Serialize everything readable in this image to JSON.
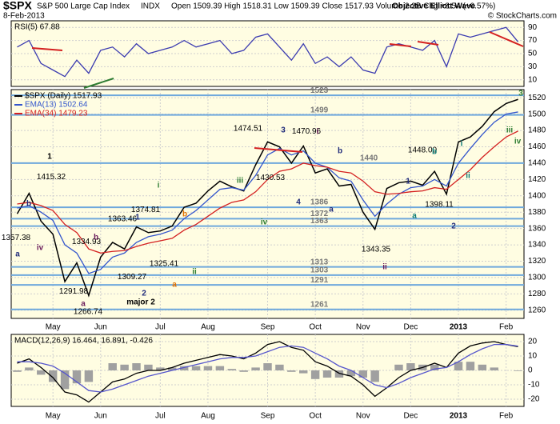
{
  "header": {
    "symbol": "$SPX",
    "name": "S&P 500 Large Cap Index",
    "exchange": "INDX",
    "date": "8-Feb-2013",
    "quote": "Open 1509.39 High 1518.31 Low 1509.39 Close 1517.93 Volume 2.2B Chg +8.54 (+0.57%)",
    "author": "Objective Elliott Wave",
    "credit": "© StockCharts.com"
  },
  "chart_data": [
    {
      "type": "line",
      "title": "RSI(5) 67.88",
      "ylim": [
        0,
        100
      ],
      "yticks": [
        10,
        30,
        50,
        70,
        90
      ],
      "grid": true,
      "series": [
        {
          "name": "RSI(5)",
          "color": "#3b3bb0",
          "values": [
            60,
            70,
            35,
            25,
            15,
            40,
            20,
            55,
            60,
            45,
            65,
            50,
            55,
            60,
            70,
            60,
            65,
            70,
            50,
            55,
            75,
            80,
            60,
            40,
            65,
            35,
            45,
            30,
            45,
            25,
            20,
            60,
            65,
            60,
            55,
            70,
            30,
            80,
            75,
            80,
            85,
            90,
            67.88
          ]
        }
      ]
    },
    {
      "type": "line",
      "ylim": [
        1250,
        1530
      ],
      "yticks": [
        1260,
        1280,
        1300,
        1320,
        1340,
        1360,
        1380,
        1400,
        1420,
        1440,
        1460,
        1480,
        1500,
        1520
      ],
      "grid": true,
      "categories": [
        null,
        null,
        null,
        "May",
        null,
        null,
        null,
        "Jun",
        null,
        null,
        null,
        null,
        "Jul",
        null,
        null,
        null,
        "Aug",
        null,
        null,
        null,
        null,
        "Sep",
        null,
        null,
        null,
        "Oct",
        null,
        null,
        null,
        "Nov",
        null,
        null,
        null,
        "Dec",
        null,
        null,
        null,
        "2013",
        null,
        null,
        null,
        "Feb",
        null
      ],
      "series": [
        {
          "name": "$SPX (Daily) 1517.93",
          "color": "#000000",
          "values": [
            1378,
            1403,
            1369,
            1353,
            1295,
            1318,
            1278,
            1325,
            1343,
            1335,
            1362,
            1355,
            1357,
            1363,
            1386,
            1391,
            1406,
            1418,
            1411,
            1406,
            1438,
            1466,
            1460,
            1440,
            1461,
            1428,
            1433,
            1412,
            1414,
            1380,
            1359,
            1409,
            1416,
            1418,
            1413,
            1430,
            1402,
            1466,
            1472,
            1485,
            1503,
            1513,
            1518
          ]
        },
        {
          "name": "EMA(13) 1502.64",
          "color": "#3355cc",
          "values": [
            1385,
            1388,
            1380,
            1370,
            1340,
            1330,
            1305,
            1310,
            1325,
            1330,
            1343,
            1350,
            1353,
            1358,
            1372,
            1382,
            1395,
            1408,
            1410,
            1407,
            1425,
            1450,
            1458,
            1450,
            1455,
            1440,
            1435,
            1422,
            1418,
            1395,
            1375,
            1390,
            1402,
            1410,
            1412,
            1420,
            1412,
            1440,
            1458,
            1475,
            1490,
            1500,
            1502.64
          ]
        },
        {
          "name": "EMA(34) 1479.23",
          "color": "#d42020",
          "values": [
            1390,
            1392,
            1388,
            1382,
            1365,
            1355,
            1335,
            1330,
            1332,
            1333,
            1338,
            1342,
            1345,
            1348,
            1358,
            1365,
            1375,
            1385,
            1392,
            1395,
            1405,
            1420,
            1430,
            1433,
            1440,
            1437,
            1435,
            1430,
            1428,
            1418,
            1405,
            1402,
            1403,
            1405,
            1406,
            1410,
            1408,
            1420,
            1432,
            1447,
            1460,
            1472,
            1479.23
          ]
        }
      ],
      "levels": [
        1523,
        1499,
        1440,
        1386,
        1372,
        1363,
        1313,
        1303,
        1291,
        1261
      ],
      "level_color": "#6fa8dc",
      "price_labels": [
        1357.38,
        1415.32,
        1334.93,
        1291.98,
        1266.74,
        1363.46,
        1374.81,
        1309.27,
        1325.41,
        1474.51,
        1430.53,
        1470.96,
        1343.35,
        {
          "value": 1448,
          "label": "1448.00"
        },
        1398.11
      ],
      "annotations": [
        {
          "text": "1",
          "color": "#000000"
        },
        {
          "text": "b",
          "color": "#1f2a7a"
        },
        {
          "text": "iv",
          "color": "#6a1b5a"
        },
        {
          "text": "a",
          "color": "#1f2a7a"
        },
        {
          "text": "b",
          "color": "#6a1b5a"
        },
        {
          "text": "a",
          "color": "#6a1b5a"
        },
        {
          "text": "major 2",
          "color": "#000000"
        },
        {
          "text": "1",
          "color": "#1f2a7a"
        },
        {
          "text": "i",
          "color": "#2e7d32"
        },
        {
          "text": "b",
          "color": "#e07000"
        },
        {
          "text": "a",
          "color": "#e07000"
        },
        {
          "text": "ii",
          "color": "#2e7d32"
        },
        {
          "text": "2",
          "color": "#1f2a7a"
        },
        {
          "text": "iii",
          "color": "#2e7d32"
        },
        {
          "text": "iv",
          "color": "#2e7d32"
        },
        {
          "text": "3",
          "color": "#1f2a7a"
        },
        {
          "text": "4",
          "color": "#1f2a7a"
        },
        {
          "text": "i",
          "color": "#6a1b5a"
        },
        {
          "text": "a",
          "color": "#1f2a7a"
        },
        {
          "text": "b",
          "color": "#1f2a7a"
        },
        {
          "text": "ii",
          "color": "#6a1b5a"
        },
        {
          "text": "1",
          "color": "#1f2a7a"
        },
        {
          "text": "a",
          "color": "#0b7a75"
        },
        {
          "text": "b",
          "color": "#0b7a75"
        },
        {
          "text": "i",
          "color": "#0b7a75"
        },
        {
          "text": "ii",
          "color": "#0b7a75"
        },
        {
          "text": "2",
          "color": "#1f2a7a"
        },
        {
          "text": "iii",
          "color": "#2e7d32"
        },
        {
          "text": "3",
          "color": "#2e7d32"
        },
        {
          "text": "iv",
          "color": "#2e7d32"
        }
      ]
    },
    {
      "type": "line",
      "title": "MACD(12,26,9) 16.464, 16.891, -0.426",
      "ylim": [
        -25,
        25
      ],
      "yticks": [
        -20,
        -10,
        0,
        10,
        20
      ],
      "grid": true,
      "categories": [
        null,
        null,
        null,
        "May",
        null,
        null,
        null,
        "Jun",
        null,
        null,
        null,
        null,
        "Jul",
        null,
        null,
        null,
        "Aug",
        null,
        null,
        null,
        null,
        "Sep",
        null,
        null,
        null,
        "Oct",
        null,
        null,
        null,
        "Nov",
        null,
        null,
        null,
        "Dec",
        null,
        null,
        null,
        "2013",
        null,
        null,
        null,
        "Feb",
        null
      ],
      "series": [
        {
          "name": "MACD",
          "type": "bar",
          "color": "#a0a0a0",
          "values": [
            -1,
            2,
            -3,
            -8,
            -13,
            -9,
            -8,
            0,
            5,
            4,
            5,
            4,
            2,
            2,
            3,
            3,
            3,
            3,
            1,
            -1,
            2,
            5,
            4,
            -1,
            -2,
            -6,
            -5,
            -5,
            -4,
            -5,
            -8,
            0,
            4,
            5,
            4,
            4,
            0,
            6,
            6,
            4,
            2,
            0,
            -0.426
          ]
        },
        {
          "name": "MACD line",
          "color": "#000000",
          "values": [
            5,
            8,
            2,
            -5,
            -15,
            -17,
            -22,
            -15,
            -8,
            -6,
            -2,
            0,
            0,
            2,
            5,
            7,
            9,
            11,
            10,
            8,
            12,
            18,
            20,
            16,
            14,
            6,
            3,
            -2,
            -4,
            -10,
            -18,
            -12,
            -5,
            0,
            2,
            5,
            2,
            12,
            17,
            19,
            20,
            18,
            16.464
          ]
        },
        {
          "name": "Signal",
          "color": "#5555cc",
          "values": [
            6,
            6,
            5,
            3,
            -2,
            -8,
            -14,
            -15,
            -13,
            -10,
            -7,
            -4,
            -2,
            0,
            2,
            4,
            6,
            8,
            9,
            9,
            10,
            13,
            16,
            17,
            16,
            12,
            8,
            3,
            0,
            -5,
            -10,
            -12,
            -9,
            -5,
            -2,
            1,
            2,
            6,
            11,
            15,
            18,
            18,
            16.891
          ]
        }
      ]
    }
  ]
}
